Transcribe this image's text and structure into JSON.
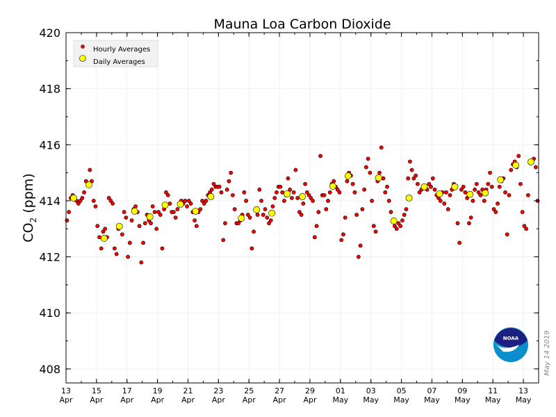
{
  "chart_data": {
    "type": "scatter",
    "title": "Mauna Loa Carbon Dioxide",
    "ylabel": "CO2 (ppm)",
    "ylabel_main": "CO",
    "ylabel_sub": "2",
    "ylabel_unit": " (ppm)",
    "xlabel": "",
    "xlim": [
      "2019-04-13",
      "2019-05-14"
    ],
    "ylim": [
      407.5,
      420
    ],
    "yticks": [
      408,
      410,
      412,
      414,
      416,
      418,
      420
    ],
    "xticks": [
      {
        "date": "2019-04-13",
        "day": "13",
        "month": "Apr"
      },
      {
        "date": "2019-04-15",
        "day": "15",
        "month": "Apr"
      },
      {
        "date": "2019-04-17",
        "day": "17",
        "month": "Apr"
      },
      {
        "date": "2019-04-19",
        "day": "19",
        "month": "Apr"
      },
      {
        "date": "2019-04-21",
        "day": "21",
        "month": "Apr"
      },
      {
        "date": "2019-04-23",
        "day": "23",
        "month": "Apr"
      },
      {
        "date": "2019-04-25",
        "day": "25",
        "month": "Apr"
      },
      {
        "date": "2019-04-27",
        "day": "27",
        "month": "Apr"
      },
      {
        "date": "2019-04-29",
        "day": "29",
        "month": "Apr"
      },
      {
        "date": "2019-05-01",
        "day": "01",
        "month": "May"
      },
      {
        "date": "2019-05-03",
        "day": "03",
        "month": "May"
      },
      {
        "date": "2019-05-05",
        "day": "05",
        "month": "May"
      },
      {
        "date": "2019-05-07",
        "day": "07",
        "month": "May"
      },
      {
        "date": "2019-05-09",
        "day": "09",
        "month": "May"
      },
      {
        "date": "2019-05-11",
        "day": "11",
        "month": "May"
      },
      {
        "date": "2019-05-13",
        "day": "13",
        "month": "May"
      }
    ],
    "grid": true,
    "legend_position": "top-left",
    "series": [
      {
        "name": "Hourly Averages",
        "color": "#ff0000",
        "start": "2019-04-13T00:00",
        "interval_hours": 3,
        "values": [
          413.3,
          413.6,
          414.1,
          414.2,
          414.1,
          414.0,
          413.9,
          414.0,
          414.1,
          414.3,
          414.7,
          414.6,
          415.1,
          414.7,
          414.0,
          413.8,
          413.1,
          412.7,
          412.3,
          412.9,
          413.0,
          412.7,
          414.1,
          414.0,
          413.9,
          412.3,
          412.1,
          413.0,
          413.1,
          412.8,
          413.6,
          413.4,
          412.0,
          412.5,
          413.3,
          413.7,
          413.8,
          413.6,
          413.1,
          411.8,
          412.5,
          413.2,
          413.5,
          413.3,
          413.2,
          413.8,
          413.6,
          413.0,
          413.6,
          413.5,
          412.3,
          413.7,
          414.3,
          414.2,
          413.9,
          413.6,
          413.6,
          413.4,
          413.7,
          413.9,
          414.0,
          413.9,
          414.0,
          413.8,
          414.0,
          413.9,
          413.6,
          413.3,
          413.1,
          413.6,
          413.7,
          414.0,
          413.9,
          414.0,
          414.2,
          414.3,
          414.4,
          414.6,
          414.5,
          414.5,
          414.5,
          414.3,
          412.6,
          413.2,
          414.4,
          414.7,
          415.0,
          414.2,
          413.7,
          413.2,
          413.2,
          413.3,
          413.5,
          414.3,
          414.0,
          413.5,
          413.4,
          412.3,
          412.9,
          413.7,
          413.5,
          414.4,
          414.0,
          413.5,
          413.7,
          413.4,
          413.2,
          413.3,
          413.8,
          414.1,
          414.3,
          414.5,
          414.5,
          414.3,
          414.0,
          414.2,
          414.8,
          414.4,
          414.1,
          414.3,
          415.1,
          414.1,
          413.6,
          413.5,
          413.9,
          414.6,
          414.3,
          414.2,
          414.1,
          414.0,
          412.7,
          413.1,
          413.6,
          415.6,
          414.2,
          414.2,
          413.7,
          414.0,
          414.3,
          414.6,
          414.7,
          414.5,
          414.4,
          414.3,
          412.6,
          412.8,
          413.4,
          414.7,
          415.0,
          414.9,
          414.6,
          414.3,
          413.5,
          412.0,
          412.4,
          413.7,
          414.4,
          415.2,
          415.5,
          415.0,
          414.0,
          413.1,
          412.9,
          414.7,
          415.0,
          415.9,
          414.8,
          414.3,
          414.5,
          414.0,
          413.6,
          413.3,
          413.1,
          413.0,
          413.2,
          413.1,
          413.3,
          413.5,
          413.7,
          414.8,
          415.4,
          415.1,
          414.8,
          414.9,
          414.6,
          414.3,
          414.4,
          414.5,
          414.5,
          414.4,
          414.6,
          414.5,
          414.8,
          414.4,
          414.2,
          414.1,
          414.0,
          414.3,
          413.9,
          414.3,
          413.7,
          414.2,
          414.4,
          414.6,
          414.5,
          413.2,
          412.5,
          414.4,
          414.5,
          414.3,
          414.1,
          413.2,
          413.4,
          414.0,
          414.4,
          414.6,
          414.3,
          414.2,
          414.4,
          414.0,
          414.4,
          414.6,
          415.0,
          414.5,
          413.7,
          413.6,
          413.9,
          414.5,
          414.7,
          414.8,
          414.3,
          412.8,
          414.2,
          415.1,
          415.3,
          415.4,
          415.2,
          415.6,
          414.6,
          413.6,
          413.1,
          413.0,
          414.2,
          415.4,
          415.4,
          415.5,
          415.2,
          414.0
        ]
      },
      {
        "name": "Daily Averages",
        "color": "#ffff00",
        "points": [
          {
            "x": "2019-04-13",
            "y": 414.1
          },
          {
            "x": "2019-04-14",
            "y": 414.57
          },
          {
            "x": "2019-04-15",
            "y": 412.66
          },
          {
            "x": "2019-04-16",
            "y": 413.09
          },
          {
            "x": "2019-04-17",
            "y": 413.63
          },
          {
            "x": "2019-04-18",
            "y": 413.43
          },
          {
            "x": "2019-04-19",
            "y": 413.85
          },
          {
            "x": "2019-04-20",
            "y": 413.88
          },
          {
            "x": "2019-04-21",
            "y": 413.63
          },
          {
            "x": "2019-04-22",
            "y": 414.15
          },
          {
            "x": "2019-04-24",
            "y": 413.38
          },
          {
            "x": "2019-04-25",
            "y": 413.68
          },
          {
            "x": "2019-04-26",
            "y": 413.56
          },
          {
            "x": "2019-04-27",
            "y": 414.25
          },
          {
            "x": "2019-04-28",
            "y": 414.15
          },
          {
            "x": "2019-04-30",
            "y": 414.52
          },
          {
            "x": "2019-05-01",
            "y": 414.89
          },
          {
            "x": "2019-05-03",
            "y": 414.82
          },
          {
            "x": "2019-05-04",
            "y": 413.28
          },
          {
            "x": "2019-05-05",
            "y": 414.1
          },
          {
            "x": "2019-05-06",
            "y": 414.5
          },
          {
            "x": "2019-05-07",
            "y": 414.25
          },
          {
            "x": "2019-05-08",
            "y": 414.5
          },
          {
            "x": "2019-05-09",
            "y": 414.23
          },
          {
            "x": "2019-05-10",
            "y": 414.28
          },
          {
            "x": "2019-05-11",
            "y": 414.75
          },
          {
            "x": "2019-05-12",
            "y": 415.27
          },
          {
            "x": "2019-05-13",
            "y": 415.39
          }
        ]
      }
    ]
  },
  "logo": {
    "text": "NOAA",
    "colors": {
      "top": "#1d2083",
      "bottom": "#0a8fcc"
    }
  },
  "date_stamp": "May 14 2019"
}
